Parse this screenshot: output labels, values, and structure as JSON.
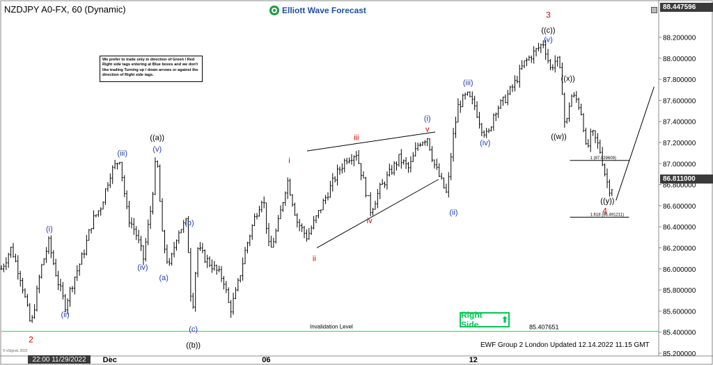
{
  "header": {
    "symbol": "NZDJPY A0-FX, 60 (Dynamic)",
    "brand": "Elliott Wave Forecast"
  },
  "note": "We prefer to trade only in direction of Green / Red Right side tags entering at Blue boxes and we don't like trading Turning up / down arrows or against the direction of Right side tags.",
  "right_side": {
    "label": "Right Side",
    "arrow": "⬆",
    "color": "#00c853"
  },
  "footer": {
    "text": "EWF Group 2 London   Updated 12.14.2022 11.15 GMT",
    "copyright": "© eSignal, 2022"
  },
  "price_tags": {
    "top": "88.447596",
    "current": "86.811000"
  },
  "time_tag": "22:00 11/29/2022",
  "chart_data": {
    "type": "ohlc",
    "ylim": [
      85.2,
      88.5
    ],
    "xlim": [
      0,
      100
    ],
    "yticks": [
      85.2,
      85.4,
      85.6,
      85.8,
      86.0,
      86.2,
      86.4,
      86.6,
      86.8,
      87.0,
      87.2,
      87.4,
      87.6,
      87.8,
      88.0,
      88.2
    ],
    "ytick_labels": [
      "85.200000",
      "85.400000",
      "85.600000",
      "85.800000",
      "86.000000",
      "86.200000",
      "86.400000",
      "86.600000",
      "86.800000",
      "87.000000",
      "87.200000",
      "87.400000",
      "87.600000",
      "87.800000",
      "88.000000",
      "88.200000"
    ],
    "xticks": [
      {
        "x": 16.5,
        "label": "Dec"
      },
      {
        "x": 40.3,
        "label": "06"
      },
      {
        "x": 71.8,
        "label": "12"
      }
    ],
    "path": [
      [
        0.0,
        86.0
      ],
      [
        1.5,
        86.2
      ],
      [
        3.0,
        85.9
      ],
      [
        4.5,
        85.45
      ],
      [
        6.0,
        86.0
      ],
      [
        7.2,
        86.25
      ],
      [
        8.5,
        85.9
      ],
      [
        9.7,
        85.65
      ],
      [
        11.0,
        85.9
      ],
      [
        12.5,
        86.15
      ],
      [
        13.8,
        86.45
      ],
      [
        15.2,
        86.6
      ],
      [
        16.5,
        86.9
      ],
      [
        18.0,
        87.05
      ],
      [
        19.2,
        86.5
      ],
      [
        20.4,
        86.35
      ],
      [
        21.6,
        86.1
      ],
      [
        22.8,
        86.6
      ],
      [
        23.6,
        87.1
      ],
      [
        24.5,
        86.3
      ],
      [
        25.5,
        86.0
      ],
      [
        26.8,
        86.35
      ],
      [
        28.2,
        86.45
      ],
      [
        29.0,
        85.55
      ],
      [
        29.8,
        86.2
      ],
      [
        31.0,
        86.1
      ],
      [
        32.5,
        86.0
      ],
      [
        33.8,
        85.9
      ],
      [
        34.8,
        85.6
      ],
      [
        35.8,
        85.8
      ],
      [
        37.2,
        86.2
      ],
      [
        38.6,
        86.5
      ],
      [
        39.8,
        86.7
      ],
      [
        40.8,
        86.15
      ],
      [
        42.0,
        86.4
      ],
      [
        43.5,
        86.85
      ],
      [
        45.0,
        86.45
      ],
      [
        46.5,
        86.3
      ],
      [
        48.0,
        86.5
      ],
      [
        49.5,
        86.7
      ],
      [
        51.0,
        86.9
      ],
      [
        52.5,
        87.05
      ],
      [
        54.0,
        87.1
      ],
      [
        55.0,
        86.85
      ],
      [
        56.2,
        86.55
      ],
      [
        57.5,
        86.75
      ],
      [
        59.0,
        86.9
      ],
      [
        60.5,
        87.05
      ],
      [
        62.0,
        86.95
      ],
      [
        63.5,
        87.2
      ],
      [
        64.8,
        87.25
      ],
      [
        65.8,
        87.0
      ],
      [
        66.8,
        86.85
      ],
      [
        67.8,
        86.7
      ],
      [
        68.6,
        87.2
      ],
      [
        69.5,
        87.55
      ],
      [
        70.8,
        87.65
      ],
      [
        72.0,
        87.55
      ],
      [
        73.0,
        87.35
      ],
      [
        74.0,
        87.25
      ],
      [
        75.0,
        87.5
      ],
      [
        76.5,
        87.6
      ],
      [
        78.0,
        87.75
      ],
      [
        79.5,
        87.95
      ],
      [
        81.0,
        88.05
      ],
      [
        82.5,
        88.15
      ],
      [
        83.5,
        87.9
      ],
      [
        84.5,
        88.0
      ],
      [
        85.2,
        87.8
      ],
      [
        85.8,
        87.3
      ],
      [
        86.6,
        87.65
      ],
      [
        87.6,
        87.6
      ],
      [
        88.4,
        87.45
      ],
      [
        89.0,
        87.1
      ],
      [
        89.8,
        87.3
      ],
      [
        90.6,
        87.2
      ],
      [
        91.2,
        87.1
      ],
      [
        92.0,
        86.85
      ],
      [
        92.6,
        86.75
      ],
      [
        93.2,
        86.8
      ]
    ],
    "hlines": [
      {
        "label": "Invalidation Level",
        "value_label": "85.407651",
        "y": 85.407651,
        "x0": 0,
        "x1": 100,
        "color": "#00e676"
      },
      {
        "label": "1 (87.029609)",
        "y": 87.029609,
        "x0": 86.5,
        "x1": 95.5,
        "color": "#000000"
      },
      {
        "label": "1.618 (86.491211)",
        "y": 86.491211,
        "x0": 86.5,
        "x1": 95.5,
        "color": "#000000"
      }
    ],
    "lines": [
      {
        "x0": 46.5,
        "y0": 87.12,
        "x1": 66.0,
        "y1": 87.3
      },
      {
        "x0": 48.0,
        "y0": 86.2,
        "x1": 66.5,
        "y1": 86.85
      },
      {
        "x0": 93.5,
        "y0": 86.65,
        "x1": 99.3,
        "y1": 87.73
      }
    ],
    "labels": [
      {
        "text": "2",
        "x": 4.5,
        "y": 85.33,
        "color": "#d50000"
      },
      {
        "text": "(i)",
        "x": 7.3,
        "y": 86.38,
        "color": "#1e3fa8"
      },
      {
        "text": "(ii)",
        "x": 9.7,
        "y": 85.57,
        "color": "#1e3fa8"
      },
      {
        "text": "(iii)",
        "x": 18.4,
        "y": 87.1,
        "color": "#1e3fa8"
      },
      {
        "text": "(iv)",
        "x": 21.5,
        "y": 86.02,
        "color": "#1e3fa8"
      },
      {
        "text": "((a))",
        "x": 23.7,
        "y": 87.25,
        "color": "#000000"
      },
      {
        "text": "(v)",
        "x": 23.7,
        "y": 87.14,
        "color": "#1e3fa8"
      },
      {
        "text": "(a)",
        "x": 24.7,
        "y": 85.92,
        "color": "#1e3fa8"
      },
      {
        "text": "(b)",
        "x": 28.6,
        "y": 86.44,
        "color": "#1e3fa8"
      },
      {
        "text": "(c)",
        "x": 29.2,
        "y": 85.43,
        "color": "#1e3fa8"
      },
      {
        "text": "((b))",
        "x": 29.2,
        "y": 85.28,
        "color": "#000000"
      },
      {
        "text": "i",
        "x": 43.8,
        "y": 87.03,
        "color": "#d50000"
      },
      {
        "text": "ii",
        "x": 47.6,
        "y": 86.1,
        "color": "#d50000"
      },
      {
        "text": "iii",
        "x": 54.0,
        "y": 87.25,
        "color": "#d50000"
      },
      {
        "text": "iv",
        "x": 56.0,
        "y": 86.46,
        "color": "#d50000"
      },
      {
        "text": "(i)",
        "x": 64.8,
        "y": 87.43,
        "color": "#1e3fa8"
      },
      {
        "text": "v",
        "x": 64.8,
        "y": 87.33,
        "color": "#d50000"
      },
      {
        "text": "(ii)",
        "x": 68.8,
        "y": 86.54,
        "color": "#1e3fa8"
      },
      {
        "text": "(iii)",
        "x": 71.0,
        "y": 87.77,
        "color": "#1e3fa8"
      },
      {
        "text": "(iv)",
        "x": 73.6,
        "y": 87.2,
        "color": "#1e3fa8"
      },
      {
        "text": "3",
        "x": 83.2,
        "y": 88.41,
        "color": "#d50000"
      },
      {
        "text": "((c))",
        "x": 83.2,
        "y": 88.27,
        "color": "#000000"
      },
      {
        "text": "(v)",
        "x": 83.2,
        "y": 88.18,
        "color": "#1e3fa8"
      },
      {
        "text": "((x))",
        "x": 86.2,
        "y": 87.81,
        "color": "#000000"
      },
      {
        "text": "((w))",
        "x": 84.8,
        "y": 87.26,
        "color": "#000000"
      },
      {
        "text": "((y))",
        "x": 92.2,
        "y": 86.65,
        "color": "#000000"
      },
      {
        "text": "4",
        "x": 91.8,
        "y": 86.55,
        "color": "#d50000"
      }
    ]
  }
}
